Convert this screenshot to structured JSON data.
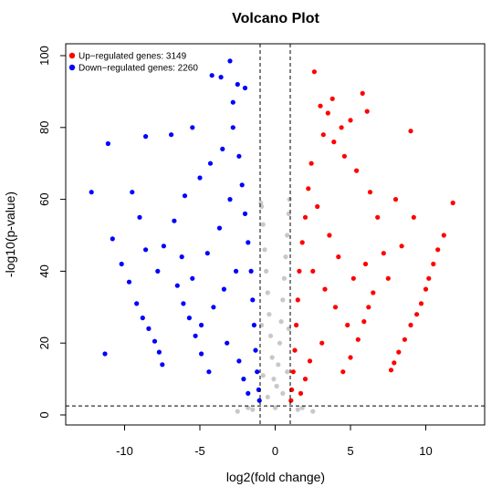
{
  "chart_data": {
    "type": "scatter",
    "title": "Volcano Plot",
    "xlabel": "log2(fold change)",
    "ylabel": "-log10(p-value)",
    "xlim": [
      -13,
      13
    ],
    "ylim": [
      0,
      100
    ],
    "xticks": [
      -10,
      -5,
      0,
      5,
      10
    ],
    "yticks": [
      0,
      20,
      40,
      60,
      80,
      100
    ],
    "thresholds": {
      "log2fc": [
        -1,
        1
      ],
      "neglog10p": 2.5
    },
    "legend": {
      "position": "top-left",
      "entries": [
        {
          "label": "Up−regulated genes: 3149",
          "color": "#ff0000"
        },
        {
          "label": "Down−regulated genes: 2260",
          "color": "#0000ff"
        }
      ]
    },
    "grid": false,
    "series": [
      {
        "label": "Up−regulated genes: 3149",
        "color": "#ff0000",
        "points": [
          [
            2.6,
            95.5
          ],
          [
            3.0,
            86.0
          ],
          [
            3.5,
            84.0
          ],
          [
            3.8,
            88.0
          ],
          [
            4.4,
            80.0
          ],
          [
            5.0,
            82.0
          ],
          [
            5.8,
            89.5
          ],
          [
            6.1,
            84.5
          ],
          [
            9.0,
            79.0
          ],
          [
            11.8,
            59.0
          ],
          [
            11.2,
            50.0
          ],
          [
            10.8,
            46.0
          ],
          [
            10.5,
            42.0
          ],
          [
            10.2,
            38.0
          ],
          [
            10.0,
            35.0
          ],
          [
            9.7,
            31.0
          ],
          [
            9.4,
            28.0
          ],
          [
            9.0,
            25.0
          ],
          [
            8.6,
            21.0
          ],
          [
            8.2,
            17.5
          ],
          [
            7.9,
            14.5
          ],
          [
            7.7,
            12.5
          ],
          [
            6.5,
            34.0
          ],
          [
            6.2,
            30.0
          ],
          [
            5.9,
            26.0
          ],
          [
            5.5,
            21.0
          ],
          [
            5.0,
            16.0
          ],
          [
            4.5,
            12.0
          ],
          [
            7.2,
            45.0
          ],
          [
            6.8,
            55.0
          ],
          [
            6.3,
            62.0
          ],
          [
            5.4,
            68.0
          ],
          [
            4.6,
            72.0
          ],
          [
            3.9,
            76.0
          ],
          [
            3.2,
            78.0
          ],
          [
            2.4,
            70.0
          ],
          [
            2.2,
            63.0
          ],
          [
            2.0,
            55.0
          ],
          [
            1.8,
            48.0
          ],
          [
            1.6,
            40.0
          ],
          [
            1.5,
            32.0
          ],
          [
            1.4,
            25.0
          ],
          [
            1.3,
            18.0
          ],
          [
            1.2,
            12.0
          ],
          [
            1.1,
            7.0
          ],
          [
            1.05,
            4.0
          ],
          [
            2.8,
            58.0
          ],
          [
            3.6,
            50.0
          ],
          [
            4.2,
            44.0
          ],
          [
            5.2,
            38.0
          ],
          [
            6.0,
            42.0
          ],
          [
            7.5,
            38.0
          ],
          [
            8.4,
            47.0
          ],
          [
            9.2,
            55.0
          ],
          [
            8.0,
            60.0
          ],
          [
            2.5,
            40.0
          ],
          [
            3.3,
            35.0
          ],
          [
            4.0,
            30.0
          ],
          [
            4.8,
            25.0
          ],
          [
            3.1,
            20.0
          ],
          [
            2.3,
            15.0
          ],
          [
            2.0,
            10.0
          ],
          [
            1.7,
            6.0
          ]
        ]
      },
      {
        "label": "Down−regulated genes: 2260",
        "color": "#0000ff",
        "points": [
          [
            -3.0,
            98.5
          ],
          [
            -2.5,
            92.0
          ],
          [
            -2.0,
            91.0
          ],
          [
            -2.8,
            87.0
          ],
          [
            -3.6,
            94.0
          ],
          [
            -4.2,
            94.5
          ],
          [
            -5.5,
            80.0
          ],
          [
            -6.9,
            78.0
          ],
          [
            -8.6,
            77.5
          ],
          [
            -11.1,
            75.5
          ],
          [
            -9.5,
            62.0
          ],
          [
            -12.2,
            62.0
          ],
          [
            -11.3,
            17.0
          ],
          [
            -10.8,
            49.0
          ],
          [
            -10.2,
            42.0
          ],
          [
            -9.7,
            37.0
          ],
          [
            -9.2,
            31.0
          ],
          [
            -8.8,
            27.0
          ],
          [
            -8.4,
            24.0
          ],
          [
            -8.0,
            20.5
          ],
          [
            -7.7,
            17.5
          ],
          [
            -7.5,
            14.0
          ],
          [
            -6.5,
            36.0
          ],
          [
            -6.1,
            31.0
          ],
          [
            -5.7,
            27.0
          ],
          [
            -5.3,
            22.0
          ],
          [
            -4.9,
            17.0
          ],
          [
            -4.4,
            12.0
          ],
          [
            -7.4,
            47.0
          ],
          [
            -6.7,
            54.0
          ],
          [
            -6.0,
            61.0
          ],
          [
            -5.0,
            66.0
          ],
          [
            -4.3,
            70.0
          ],
          [
            -3.5,
            74.0
          ],
          [
            -2.8,
            80.0
          ],
          [
            -2.4,
            72.0
          ],
          [
            -2.2,
            64.0
          ],
          [
            -2.0,
            56.0
          ],
          [
            -1.8,
            48.0
          ],
          [
            -1.6,
            40.0
          ],
          [
            -1.5,
            32.0
          ],
          [
            -1.4,
            25.0
          ],
          [
            -1.3,
            18.0
          ],
          [
            -1.2,
            12.0
          ],
          [
            -1.1,
            7.0
          ],
          [
            -1.05,
            4.0
          ],
          [
            -3.0,
            60.0
          ],
          [
            -3.7,
            52.0
          ],
          [
            -4.5,
            45.0
          ],
          [
            -5.5,
            38.0
          ],
          [
            -6.2,
            44.0
          ],
          [
            -7.8,
            40.0
          ],
          [
            -8.6,
            46.0
          ],
          [
            -9.0,
            55.0
          ],
          [
            -2.6,
            40.0
          ],
          [
            -3.4,
            35.0
          ],
          [
            -4.1,
            30.0
          ],
          [
            -4.9,
            25.0
          ],
          [
            -3.2,
            20.0
          ],
          [
            -2.4,
            15.0
          ],
          [
            -2.1,
            10.0
          ],
          [
            -1.8,
            6.0
          ]
        ]
      },
      {
        "label": "Not significant",
        "color": "#c8c8c8",
        "points": [
          [
            0.0,
            2.0
          ],
          [
            0.1,
            8.0
          ],
          [
            -0.1,
            10.0
          ],
          [
            0.2,
            14.0
          ],
          [
            -0.2,
            16.0
          ],
          [
            0.3,
            20.0
          ],
          [
            -0.3,
            22.0
          ],
          [
            0.4,
            26.0
          ],
          [
            -0.4,
            28.0
          ],
          [
            0.5,
            32.0
          ],
          [
            -0.5,
            34.0
          ],
          [
            0.6,
            38.0
          ],
          [
            -0.6,
            40.0
          ],
          [
            0.7,
            44.0
          ],
          [
            -0.7,
            46.0
          ],
          [
            0.8,
            50.0
          ],
          [
            -0.8,
            53.0
          ],
          [
            0.9,
            56.0
          ],
          [
            -0.9,
            58.0
          ],
          [
            0.95,
            60.0
          ],
          [
            -0.95,
            59.0
          ],
          [
            0.5,
            6.0
          ],
          [
            -0.5,
            5.0
          ],
          [
            0.8,
            12.0
          ],
          [
            -0.8,
            11.0
          ],
          [
            0.9,
            24.0
          ],
          [
            -0.9,
            25.0
          ],
          [
            1.5,
            1.5
          ],
          [
            2.5,
            1.0
          ],
          [
            -1.5,
            1.5
          ],
          [
            -2.5,
            1.0
          ],
          [
            1.8,
            2.0
          ],
          [
            -1.8,
            2.0
          ]
        ]
      }
    ]
  }
}
